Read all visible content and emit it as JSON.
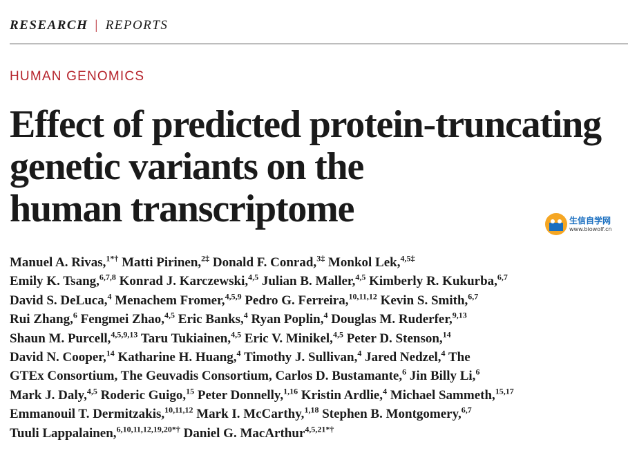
{
  "header": {
    "section": "RESEARCH",
    "separator": "|",
    "subsection": "REPORTS"
  },
  "category": "HUMAN GENOMICS",
  "title_lines": [
    "Effect of predicted protein-truncating",
    "genetic variants on the",
    "human transcriptome"
  ],
  "watermark": {
    "name": "生信自学网",
    "url": "www.biowolf.cn"
  },
  "author_lines": [
    [
      {
        "name": "Manuel A. Rivas,",
        "sup": "1*†"
      },
      {
        "name": "Matti Pirinen,",
        "sup": "2‡"
      },
      {
        "name": "Donald F. Conrad,",
        "sup": "3‡"
      },
      {
        "name": "Monkol Lek,",
        "sup": "4,5‡"
      }
    ],
    [
      {
        "name": "Emily K. Tsang,",
        "sup": "6,7,8"
      },
      {
        "name": "Konrad J. Karczewski,",
        "sup": "4,5"
      },
      {
        "name": "Julian B. Maller,",
        "sup": "4,5"
      },
      {
        "name": "Kimberly R. Kukurba,",
        "sup": "6,7"
      }
    ],
    [
      {
        "name": "David S. DeLuca,",
        "sup": "4"
      },
      {
        "name": "Menachem Fromer,",
        "sup": "4,5,9"
      },
      {
        "name": "Pedro G. Ferreira,",
        "sup": "10,11,12"
      },
      {
        "name": "Kevin S. Smith,",
        "sup": "6,7"
      }
    ],
    [
      {
        "name": "Rui Zhang,",
        "sup": "6"
      },
      {
        "name": "Fengmei Zhao,",
        "sup": "4,5"
      },
      {
        "name": "Eric Banks,",
        "sup": "4"
      },
      {
        "name": "Ryan Poplin,",
        "sup": "4"
      },
      {
        "name": "Douglas M. Ruderfer,",
        "sup": "9,13"
      }
    ],
    [
      {
        "name": "Shaun M. Purcell,",
        "sup": "4,5,9,13"
      },
      {
        "name": "Taru Tukiainen,",
        "sup": "4,5"
      },
      {
        "name": "Eric V. Minikel,",
        "sup": "4,5"
      },
      {
        "name": "Peter D. Stenson,",
        "sup": "14"
      }
    ],
    [
      {
        "name": "David N. Cooper,",
        "sup": "14"
      },
      {
        "name": "Katharine H. Huang,",
        "sup": "4"
      },
      {
        "name": "Timothy J. Sullivan,",
        "sup": "4"
      },
      {
        "name": "Jared Nedzel,",
        "sup": "4"
      },
      {
        "name": "The"
      }
    ],
    [
      {
        "name": "GTEx Consortium, The Geuvadis Consortium, Carlos D. Bustamante,",
        "sup": "6"
      },
      {
        "name": "Jin Billy Li,",
        "sup": "6"
      }
    ],
    [
      {
        "name": "Mark J. Daly,",
        "sup": "4,5"
      },
      {
        "name": "Roderic Guigo,",
        "sup": "15"
      },
      {
        "name": "Peter Donnelly,",
        "sup": "1,16"
      },
      {
        "name": "Kristin Ardlie,",
        "sup": "4"
      },
      {
        "name": "Michael Sammeth,",
        "sup": "15,17"
      }
    ],
    [
      {
        "name": "Emmanouil T. Dermitzakis,",
        "sup": "10,11,12"
      },
      {
        "name": "Mark I. McCarthy,",
        "sup": "1,18"
      },
      {
        "name": "Stephen B. Montgomery,",
        "sup": "6,7"
      }
    ],
    [
      {
        "name": "Tuuli Lappalainen,",
        "sup": "6,10,11,12,19,20*†"
      },
      {
        "name": "Daniel G. MacArthur",
        "sup": "4,5,21*†"
      }
    ]
  ]
}
